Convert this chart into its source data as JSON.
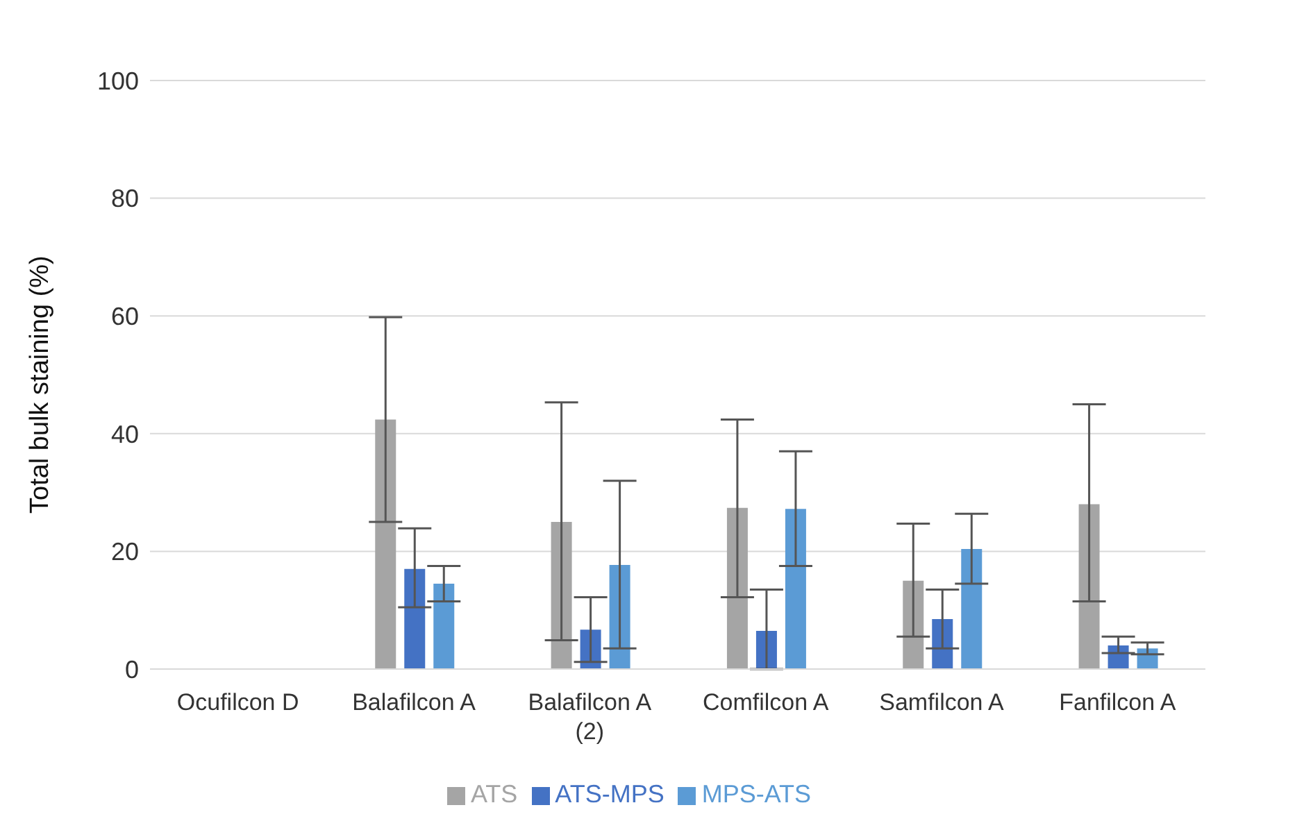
{
  "chart_data": {
    "type": "bar",
    "ylabel": "Total bulk staining (%)",
    "categories": [
      "Ocufilcon D",
      "Balafilcon A",
      "Balafilcon A (2)",
      "Comfilcon A",
      "Samfilcon A",
      "Fanfilcon A"
    ],
    "series": [
      {
        "name": "ATS",
        "color": "#a5a5a5",
        "values": [
          0,
          42.4,
          25,
          27.4,
          15,
          28
        ],
        "errors": [
          null,
          [
            25,
            59.8
          ],
          [
            4.9,
            45.3
          ],
          [
            12.2,
            42.4
          ],
          [
            5.5,
            24.7
          ],
          [
            11.5,
            45
          ]
        ]
      },
      {
        "name": "ATS-MPS",
        "color": "#4472c4",
        "values": [
          0,
          17,
          6.7,
          6.5,
          8.5,
          4
        ],
        "errors": [
          null,
          [
            10.5,
            23.9
          ],
          [
            1.2,
            12.2
          ],
          [
            0,
            13.5
          ],
          [
            3.5,
            13.5
          ],
          [
            2.7,
            5.5
          ]
        ]
      },
      {
        "name": "MPS-ATS",
        "color": "#5b9bd5",
        "values": [
          0,
          14.5,
          17.7,
          27.2,
          20.4,
          3.5
        ],
        "errors": [
          null,
          [
            11.5,
            17.5
          ],
          [
            3.5,
            32
          ],
          [
            17.5,
            37
          ],
          [
            14.5,
            26.4
          ],
          [
            2.5,
            4.5
          ]
        ]
      }
    ],
    "ylim": [
      0,
      100
    ],
    "yticks": [
      0,
      20,
      40,
      60,
      80,
      100
    ],
    "grid": "y",
    "legend": "bottom"
  }
}
